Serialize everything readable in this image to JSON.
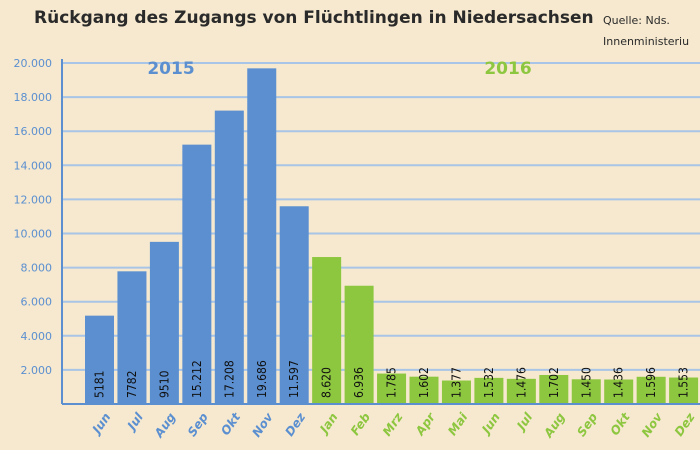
{
  "title": "Rückgang des Zugangs von Flüchtlingen in Niedersachsen",
  "source_line1": "Quelle: Nds.",
  "source_line2": "Innenministeriu",
  "colors": {
    "y2015": "#5b8fd0",
    "y2016": "#8dc63f",
    "grid": "#a8c4e6",
    "axis": "#5b8fd0"
  },
  "chart_data": {
    "type": "bar",
    "title": "Rückgang des Zugangs von Flüchtlingen in Niedersachsen",
    "xlabel": "",
    "ylabel": "",
    "ylim": [
      0,
      20000
    ],
    "yticks": [
      "2.000",
      "4.000",
      "6.000",
      "8.000",
      "10.000",
      "12.000",
      "14.000",
      "16.000",
      "18.000",
      "20.000"
    ],
    "ytick_values": [
      2000,
      4000,
      6000,
      8000,
      10000,
      12000,
      14000,
      16000,
      18000,
      20000
    ],
    "grid": true,
    "groups": [
      {
        "name": "2015",
        "color": "#5b8fd0",
        "categories": [
          "Jun",
          "Jul",
          "Aug",
          "Sep",
          "Okt",
          "Nov",
          "Dez"
        ],
        "values": [
          5181,
          7782,
          9510,
          15212,
          17208,
          19686,
          11597
        ],
        "labels": [
          "5181",
          "7782",
          "9510",
          "15.212",
          "17.208",
          "19.686",
          "11.597"
        ]
      },
      {
        "name": "2016",
        "color": "#8dc63f",
        "categories": [
          "Jan",
          "Feb",
          "Mrz",
          "Apr",
          "Mai",
          "Jun",
          "Jul",
          "Aug",
          "Sep",
          "Okt",
          "Nov",
          "Dez"
        ],
        "values": [
          8620,
          6936,
          1785,
          1602,
          1377,
          1532,
          1476,
          1702,
          1450,
          1436,
          1596,
          1553
        ],
        "labels": [
          "8.620",
          "6.936",
          "1.785",
          "1.602",
          "1.377",
          "1.532",
          "1.476",
          "1.702",
          "1.450",
          "1.436",
          "1.596",
          "1.553"
        ]
      }
    ]
  }
}
